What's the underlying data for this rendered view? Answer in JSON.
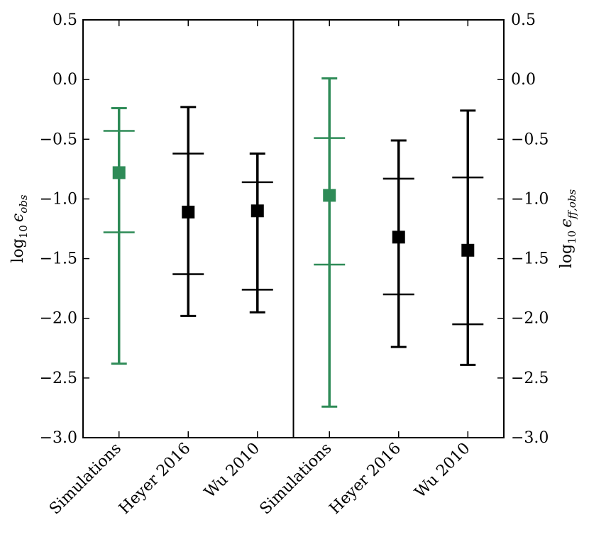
{
  "chart_data": {
    "type": "errorbar",
    "ylim": [
      -3.0,
      0.5
    ],
    "yticks": [
      0.5,
      0.0,
      -0.5,
      -1.0,
      -1.5,
      -2.0,
      -2.5,
      -3.0
    ],
    "ytick_labels": [
      "0.5",
      "0.0",
      "−0.5",
      "−1.0",
      "−1.5",
      "−2.0",
      "−2.5",
      "−3.0"
    ],
    "colors": {
      "simulations": "#2e8b57",
      "observations": "#000000"
    },
    "panels": [
      {
        "ylabel": {
          "base": "log",
          "sub": "10",
          "symbol": "ϵ",
          "symbol_sub": "obs"
        },
        "points": [
          {
            "category": "Simulations",
            "median": -0.78,
            "q_upper": -0.43,
            "q_lower": -1.28,
            "max": -0.24,
            "min": -2.38,
            "color_key": "simulations"
          },
          {
            "category": "Heyer 2016",
            "median": -1.11,
            "q_upper": -0.62,
            "q_lower": -1.63,
            "max": -0.23,
            "min": -1.98,
            "color_key": "observations"
          },
          {
            "category": "Wu 2010",
            "median": -1.1,
            "q_upper": -0.86,
            "q_lower": -1.76,
            "max": -0.62,
            "min": -1.95,
            "color_key": "observations"
          }
        ]
      },
      {
        "ylabel": {
          "base": "log",
          "sub": "10",
          "symbol": "ϵ",
          "symbol_sub": "ff,obs"
        },
        "points": [
          {
            "category": "Simulations",
            "median": -0.97,
            "q_upper": -0.49,
            "q_lower": -1.55,
            "max": 0.01,
            "min": -2.74,
            "color_key": "simulations"
          },
          {
            "category": "Heyer 2016",
            "median": -1.32,
            "q_upper": -0.83,
            "q_lower": -1.8,
            "max": -0.51,
            "min": -2.24,
            "color_key": "observations"
          },
          {
            "category": "Wu 2010",
            "median": -1.43,
            "q_upper": -0.82,
            "q_lower": -2.05,
            "max": -0.26,
            "min": -2.39,
            "color_key": "observations"
          }
        ]
      }
    ]
  }
}
